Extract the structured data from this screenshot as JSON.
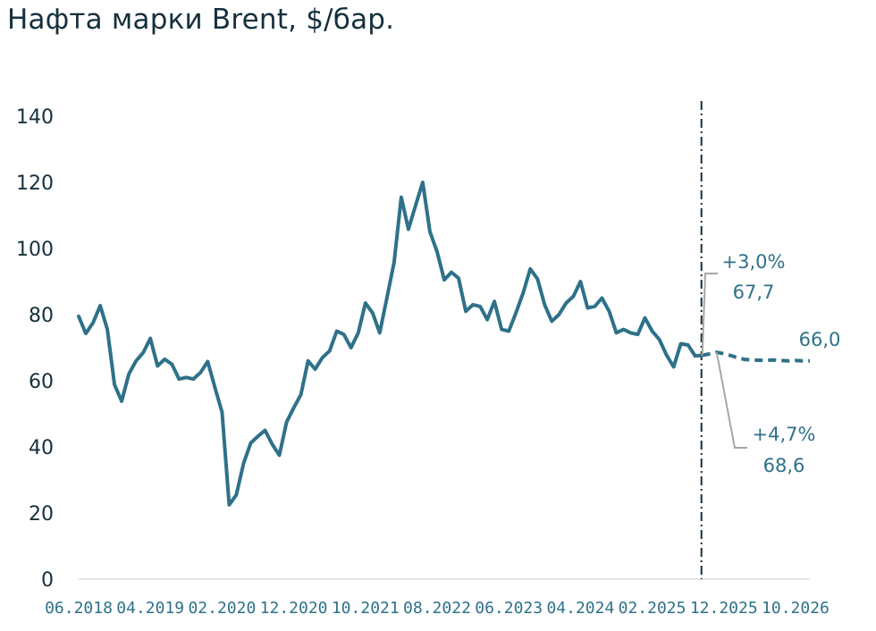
{
  "title": "Нафта марки Brent, $/бар.",
  "colors": {
    "series": "#2e7189",
    "axis": "#16303d",
    "leader": "#a6a6a6",
    "divider": "#16303d"
  },
  "chart_data": {
    "type": "line",
    "title": "Нафта марки Brent, $/бар.",
    "xlabel": "",
    "ylabel": "",
    "ylim": [
      0,
      140
    ],
    "y_ticks": [
      "0",
      "20",
      "40",
      "60",
      "80",
      "100",
      "120",
      "140"
    ],
    "x_ticks": [
      "06.2018",
      "04.2019",
      "02.2020",
      "12.2020",
      "10.2021",
      "08.2022",
      "06.2023",
      "04.2024",
      "02.2025",
      "12.2025",
      "10.2026"
    ],
    "grid": false,
    "forecast_start": "09.2025",
    "series": [
      {
        "style": "solid",
        "x": [
          "06.2018",
          "07.2018",
          "08.2018",
          "09.2018",
          "10.2018",
          "11.2018",
          "12.2018",
          "01.2019",
          "02.2019",
          "03.2019",
          "04.2019",
          "05.2019",
          "06.2019",
          "07.2019",
          "08.2019",
          "09.2019",
          "10.2019",
          "11.2019",
          "12.2019",
          "01.2020",
          "02.2020",
          "03.2020",
          "04.2020",
          "05.2020",
          "06.2020",
          "07.2020",
          "08.2020",
          "09.2020",
          "10.2020",
          "11.2020",
          "12.2020",
          "01.2021",
          "02.2021",
          "03.2021",
          "04.2021",
          "05.2021",
          "06.2021",
          "07.2021",
          "08.2021",
          "09.2021",
          "10.2021",
          "11.2021",
          "12.2021",
          "01.2022",
          "02.2022",
          "03.2022",
          "04.2022",
          "05.2022",
          "06.2022",
          "07.2022",
          "08.2022",
          "09.2022",
          "10.2022",
          "11.2022",
          "12.2022",
          "01.2023",
          "02.2023",
          "03.2023",
          "04.2023",
          "05.2023",
          "06.2023",
          "07.2023",
          "08.2023",
          "09.2023",
          "10.2023",
          "11.2023",
          "12.2023",
          "01.2024",
          "02.2024",
          "03.2024",
          "04.2024",
          "05.2024",
          "06.2024",
          "07.2024",
          "08.2024",
          "09.2024",
          "10.2024",
          "11.2024",
          "12.2024",
          "01.2025",
          "02.2025",
          "03.2025",
          "04.2025",
          "05.2025",
          "06.2025",
          "07.2025",
          "08.2025",
          "09.2025"
        ],
        "values": [
          79.5,
          74.3,
          77.5,
          82.7,
          75.5,
          58.8,
          53.8,
          62,
          66,
          68.5,
          72.8,
          64.5,
          66.5,
          65,
          60.5,
          61,
          60.5,
          62.5,
          65.8,
          58,
          50.5,
          22.5,
          25.5,
          35,
          41.2,
          43.2,
          45,
          40.8,
          37.5,
          47.5,
          51.8,
          55.8,
          66,
          63.5,
          67,
          69,
          75,
          74,
          70,
          74.5,
          83.5,
          80.5,
          74.5,
          85,
          95.8,
          115.5,
          105.8,
          113,
          120,
          105,
          99,
          90.5,
          92.8,
          91,
          81,
          83,
          82.5,
          78.5,
          84,
          75.5,
          75,
          80.5,
          86.5,
          93.8,
          90.8,
          83,
          78,
          80,
          83.5,
          85.5,
          90,
          82,
          82.5,
          85,
          81,
          74.5,
          75.5,
          74.5,
          74,
          79,
          75,
          72.5,
          67.8,
          64.2,
          71.2,
          70.8,
          67.5,
          67.7
        ]
      },
      {
        "style": "dashed",
        "x": [
          "09.2025",
          "10.2025",
          "11.2025",
          "12.2025",
          "01.2026",
          "02.2026",
          "03.2026",
          "04.2026",
          "05.2026",
          "06.2026",
          "07.2026",
          "08.2026",
          "09.2026",
          "10.2026",
          "11.2026",
          "12.2026"
        ],
        "values": [
          67.7,
          68.1,
          68.6,
          68.2,
          67.6,
          66.9,
          66.4,
          66.3,
          66.2,
          66.2,
          66.3,
          66.1,
          66.0,
          66.1,
          66.0,
          66.0
        ]
      }
    ],
    "annotations": [
      {
        "name": "label-upper",
        "change": "+3,0%",
        "value": "67,7"
      },
      {
        "name": "label-lower",
        "change": "+4,7%",
        "value": "68,6"
      },
      {
        "name": "label-end",
        "value": "66,0"
      }
    ]
  }
}
